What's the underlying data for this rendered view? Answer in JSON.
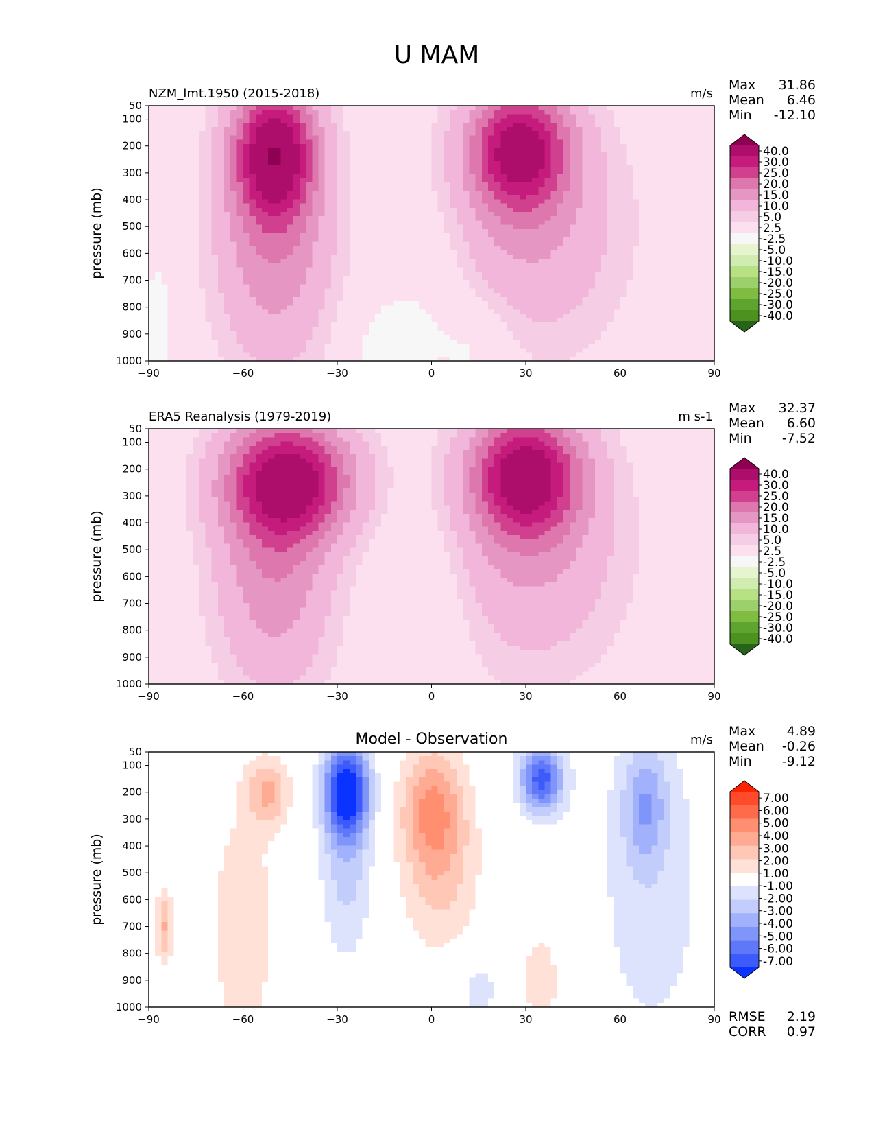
{
  "figure_title": "U MAM",
  "chart_data": [
    {
      "type": "heatmap",
      "id": "model",
      "title": "NZM_lmt.1950 (2015-2018)",
      "units": "m/s",
      "xlabel": "",
      "ylabel": "pressure (mb)",
      "xlim": [
        -90,
        90
      ],
      "ylim": [
        1000,
        50
      ],
      "x_ticks": [
        "−90",
        "−60",
        "−30",
        "0",
        "30",
        "60",
        "90"
      ],
      "x_tick_values": [
        -90,
        -60,
        -30,
        0,
        30,
        60,
        90
      ],
      "y_ticks": [
        "50",
        "100",
        "200",
        "300",
        "400",
        "500",
        "600",
        "700",
        "800",
        "900",
        "1000"
      ],
      "y_tick_values": [
        50,
        100,
        200,
        300,
        400,
        500,
        600,
        700,
        800,
        900,
        1000
      ],
      "stats": [
        {
          "label": "Max",
          "value": "31.86"
        },
        {
          "label": "Mean",
          "value": "6.46"
        },
        {
          "label": "Min",
          "value": "-12.10"
        }
      ],
      "colorbar": {
        "labels": [
          "40.0",
          "30.0",
          "25.0",
          "20.0",
          "15.0",
          "10.0",
          "5.0",
          "2.5",
          "-2.5",
          "-5.0",
          "-10.0",
          "-15.0",
          "-20.0",
          "-25.0",
          "-30.0",
          "-40.0"
        ],
        "colors": [
          "#8e0152",
          "#ad0e6c",
          "#c51b7d",
          "#d0408f",
          "#de77ae",
          "#e696c2",
          "#f1b6da",
          "#f5cde5",
          "#fde0ef",
          "#f7f7f7",
          "#e6f5d0",
          "#d0ecb0",
          "#b8e186",
          "#9bd06a",
          "#7fbc41",
          "#5ea530",
          "#4d9221",
          "#276419"
        ]
      },
      "features": [
        {
          "lat": -50,
          "p": 220,
          "value": 32,
          "dlat": 9,
          "dp": 170
        },
        {
          "lat": -50,
          "p": 550,
          "value": 14,
          "dlat": 13,
          "dp": 330
        },
        {
          "lat": 28,
          "p": 210,
          "value": 30,
          "dlat": 11,
          "dp": 160
        },
        {
          "lat": 32,
          "p": 500,
          "value": 10,
          "dlat": 20,
          "dp": 320
        },
        {
          "lat": 0,
          "p": 700,
          "value": -3,
          "dlat": 10,
          "dp": 250
        },
        {
          "lat": -15,
          "p": 950,
          "value": -4,
          "dlat": 9,
          "dp": 140
        },
        {
          "lat": 15,
          "p": 950,
          "value": -4,
          "dlat": 9,
          "dp": 140
        },
        {
          "lat": -87,
          "p": 850,
          "value": -5,
          "dlat": 3,
          "dp": 170
        }
      ]
    },
    {
      "type": "heatmap",
      "id": "obs",
      "title": "ERA5 Reanalysis (1979-2019)",
      "units": "m s-1",
      "xlabel": "",
      "ylabel": "pressure (mb)",
      "xlim": [
        -90,
        90
      ],
      "ylim": [
        1000,
        50
      ],
      "x_ticks": [
        "−90",
        "−60",
        "−30",
        "0",
        "30",
        "60",
        "90"
      ],
      "x_tick_values": [
        -90,
        -60,
        -30,
        0,
        30,
        60,
        90
      ],
      "y_ticks": [
        "50",
        "100",
        "200",
        "300",
        "400",
        "500",
        "600",
        "700",
        "800",
        "900",
        "1000"
      ],
      "y_tick_values": [
        50,
        100,
        200,
        300,
        400,
        500,
        600,
        700,
        800,
        900,
        1000
      ],
      "stats": [
        {
          "label": "Max",
          "value": "32.37"
        },
        {
          "label": "Mean",
          "value": "6.60"
        },
        {
          "label": "Min",
          "value": "-7.52"
        }
      ],
      "colorbar": {
        "labels": [
          "40.0",
          "30.0",
          "25.0",
          "20.0",
          "15.0",
          "10.0",
          "5.0",
          "2.5",
          "-2.5",
          "-5.0",
          "-10.0",
          "-15.0",
          "-20.0",
          "-25.0",
          "-30.0",
          "-40.0"
        ],
        "colors": [
          "#8e0152",
          "#ad0e6c",
          "#c51b7d",
          "#d0408f",
          "#de77ae",
          "#e696c2",
          "#f1b6da",
          "#f5cde5",
          "#fde0ef",
          "#f7f7f7",
          "#e6f5d0",
          "#d0ecb0",
          "#b8e186",
          "#9bd06a",
          "#7fbc41",
          "#5ea530",
          "#4d9221",
          "#276419"
        ]
      },
      "features": [
        {
          "lat": -45,
          "p": 240,
          "value": 30,
          "dlat": 14,
          "dp": 150
        },
        {
          "lat": -50,
          "p": 550,
          "value": 14,
          "dlat": 13,
          "dp": 330
        },
        {
          "lat": 30,
          "p": 220,
          "value": 31,
          "dlat": 12,
          "dp": 160
        },
        {
          "lat": 32,
          "p": 500,
          "value": 10,
          "dlat": 20,
          "dp": 320
        },
        {
          "lat": 0,
          "p": 700,
          "value": -3,
          "dlat": 10,
          "dp": 300
        }
      ]
    },
    {
      "type": "heatmap",
      "id": "diff",
      "title": "Model - Observation",
      "units": "m/s",
      "xlabel": "",
      "ylabel": "pressure (mb)",
      "xlim": [
        -90,
        90
      ],
      "ylim": [
        1000,
        50
      ],
      "x_ticks": [
        "−90",
        "−60",
        "−30",
        "0",
        "30",
        "60",
        "90"
      ],
      "x_tick_values": [
        -90,
        -60,
        -30,
        0,
        30,
        60,
        90
      ],
      "y_ticks": [
        "50",
        "100",
        "200",
        "300",
        "400",
        "500",
        "600",
        "700",
        "800",
        "900",
        "1000"
      ],
      "y_tick_values": [
        50,
        100,
        200,
        300,
        400,
        500,
        600,
        700,
        800,
        900,
        1000
      ],
      "stats": [
        {
          "label": "Max",
          "value": "4.89"
        },
        {
          "label": "Mean",
          "value": "-0.26"
        },
        {
          "label": "Min",
          "value": "-9.12"
        }
      ],
      "extra_stats": [
        {
          "label": "RMSE",
          "value": "2.19"
        },
        {
          "label": "CORR",
          "value": "0.97"
        }
      ],
      "colorbar": {
        "labels": [
          "7.00",
          "6.00",
          "5.00",
          "4.00",
          "3.00",
          "2.00",
          "1.00",
          "-1.00",
          "-2.00",
          "-3.00",
          "-4.00",
          "-5.00",
          "-6.00",
          "-7.00"
        ],
        "colors": [
          "#ff2200",
          "#ff4b2b",
          "#ff6a4a",
          "#ff8f70",
          "#ffaa92",
          "#ffc7b6",
          "#ffe1d7",
          "#ffffff",
          "#dde3fc",
          "#c2cdfb",
          "#a2b1fb",
          "#8095fa",
          "#5f78fa",
          "#3d5afa",
          "#0a33ff"
        ]
      },
      "features": [
        {
          "lat": -27,
          "p": 190,
          "value": -7.5,
          "dlat": 5,
          "dp": 120
        },
        {
          "lat": -27,
          "p": 450,
          "value": -2.5,
          "dlat": 6,
          "dp": 260
        },
        {
          "lat": 35,
          "p": 150,
          "value": -6.5,
          "dlat": 5,
          "dp": 90
        },
        {
          "lat": 0,
          "p": 250,
          "value": 3.5,
          "dlat": 7,
          "dp": 160
        },
        {
          "lat": 3,
          "p": 500,
          "value": 2.2,
          "dlat": 9,
          "dp": 230
        },
        {
          "lat": -52,
          "p": 200,
          "value": 3,
          "dlat": 5,
          "dp": 90
        },
        {
          "lat": -60,
          "p": 700,
          "value": 1.8,
          "dlat": 8,
          "dp": 330
        },
        {
          "lat": -85,
          "p": 700,
          "value": 3,
          "dlat": 2,
          "dp": 100
        },
        {
          "lat": 70,
          "p": 550,
          "value": -1.5,
          "dlat": 14,
          "dp": 500
        },
        {
          "lat": 35,
          "p": 900,
          "value": 1.5,
          "dlat": 6,
          "dp": 160
        },
        {
          "lat": 15,
          "p": 930,
          "value": -1.5,
          "dlat": 6,
          "dp": 100
        },
        {
          "lat": 68,
          "p": 250,
          "value": -3,
          "dlat": 5,
          "dp": 160
        }
      ]
    }
  ]
}
